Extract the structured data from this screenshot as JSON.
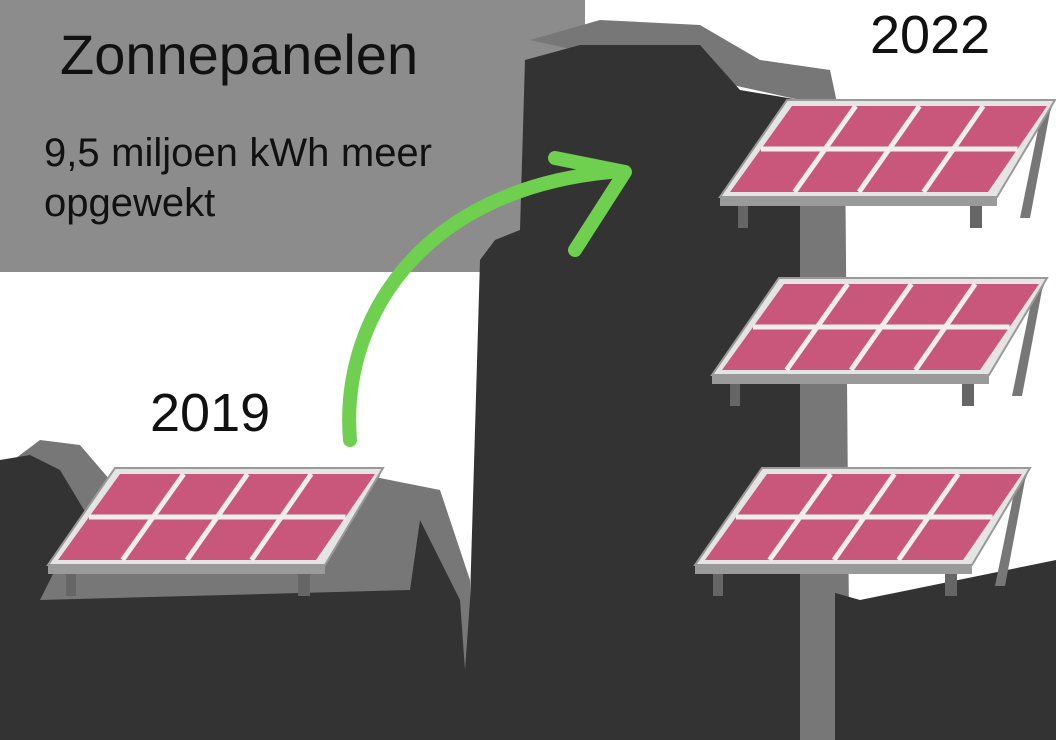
{
  "title": "Zonnepanelen",
  "text": "9,5 miljoen kWh meer opgewekt",
  "labels": [
    "2019",
    "2022"
  ]
}
